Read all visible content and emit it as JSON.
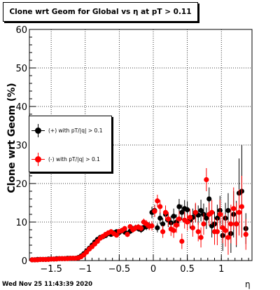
{
  "title": "Clone wrt Geom for Global vs   η at pT > 0.11",
  "footer": {
    "date": "Wed Nov 25 11:43:39 2020"
  },
  "chart_data": {
    "type": "scatter",
    "xlabel": "η",
    "ylabel": "Clone wrt Geom (%)",
    "xlim": [
      -1.82,
      1.45
    ],
    "ylim": [
      0,
      60
    ],
    "xticks": [
      -1.5,
      -1,
      -0.5,
      0,
      0.5,
      1
    ],
    "xtick_labels": [
      "−1.5",
      "−1",
      "−0.5",
      "0",
      "0.5",
      "1"
    ],
    "yticks": [
      0,
      10,
      20,
      30,
      40,
      50,
      60
    ],
    "grid": true,
    "legend_position": "left-middle",
    "series": [
      {
        "name": "(+) with pT/|q| > 0.1",
        "color": "#000000",
        "points": [
          [
            -1.78,
            0.2,
            0.2
          ],
          [
            -1.74,
            0.2,
            0.2
          ],
          [
            -1.7,
            0.3,
            0.2
          ],
          [
            -1.66,
            0.3,
            0.2
          ],
          [
            -1.62,
            0.3,
            0.2
          ],
          [
            -1.58,
            0.3,
            0.2
          ],
          [
            -1.54,
            0.4,
            0.2
          ],
          [
            -1.5,
            0.4,
            0.2
          ],
          [
            -1.46,
            0.4,
            0.2
          ],
          [
            -1.42,
            0.5,
            0.2
          ],
          [
            -1.38,
            0.5,
            0.2
          ],
          [
            -1.34,
            0.5,
            0.2
          ],
          [
            -1.3,
            0.5,
            0.2
          ],
          [
            -1.26,
            0.6,
            0.2
          ],
          [
            -1.22,
            0.6,
            0.2
          ],
          [
            -1.18,
            0.6,
            0.2
          ],
          [
            -1.14,
            0.6,
            0.2
          ],
          [
            -1.1,
            0.8,
            0.2
          ],
          [
            -1.06,
            1.2,
            0.3
          ],
          [
            -1.02,
            1.8,
            0.3
          ],
          [
            -0.98,
            2.5,
            0.4
          ],
          [
            -0.94,
            3.2,
            0.4
          ],
          [
            -0.9,
            4.0,
            0.4
          ],
          [
            -0.86,
            4.8,
            0.5
          ],
          [
            -0.82,
            5.5,
            0.5
          ],
          [
            -0.78,
            6.0,
            0.5
          ],
          [
            -0.74,
            6.2,
            0.5
          ],
          [
            -0.7,
            6.5,
            0.6
          ],
          [
            -0.66,
            7.0,
            0.6
          ],
          [
            -0.62,
            6.8,
            0.6
          ],
          [
            -0.58,
            7.2,
            0.6
          ],
          [
            -0.54,
            7.5,
            0.6
          ],
          [
            -0.5,
            7.3,
            0.6
          ],
          [
            -0.46,
            7.8,
            0.7
          ],
          [
            -0.42,
            7.4,
            0.7
          ],
          [
            -0.38,
            7.0,
            0.7
          ],
          [
            -0.34,
            7.6,
            0.7
          ],
          [
            -0.3,
            8.2,
            0.8
          ],
          [
            -0.26,
            8.5,
            0.8
          ],
          [
            -0.22,
            8.3,
            0.8
          ],
          [
            -0.18,
            8.0,
            0.8
          ],
          [
            -0.14,
            8.6,
            0.9
          ],
          [
            -0.1,
            8.8,
            0.9
          ],
          [
            -0.06,
            9.0,
            1.0
          ],
          [
            -0.02,
            12.5,
            1.5
          ],
          [
            0.02,
            13.0,
            1.5
          ],
          [
            0.06,
            8.5,
            1.2
          ],
          [
            0.1,
            11.0,
            1.5
          ],
          [
            0.14,
            9.5,
            1.5
          ],
          [
            0.18,
            12.0,
            1.8
          ],
          [
            0.22,
            10.5,
            1.8
          ],
          [
            0.26,
            9.8,
            1.8
          ],
          [
            0.3,
            11.5,
            2.0
          ],
          [
            0.34,
            10.0,
            2.0
          ],
          [
            0.38,
            14.0,
            2.0
          ],
          [
            0.42,
            12.5,
            2.0
          ],
          [
            0.46,
            13.5,
            2.2
          ],
          [
            0.5,
            13.2,
            2.2
          ],
          [
            0.54,
            10.5,
            2.2
          ],
          [
            0.58,
            11.2,
            2.3
          ],
          [
            0.62,
            12.3,
            2.4
          ],
          [
            0.66,
            11.8,
            2.5
          ],
          [
            0.7,
            13.0,
            2.8
          ],
          [
            0.74,
            12.0,
            2.8
          ],
          [
            0.78,
            11.0,
            2.8
          ],
          [
            0.82,
            16.0,
            3.0
          ],
          [
            0.86,
            9.0,
            3.0
          ],
          [
            0.9,
            9.5,
            3.2
          ],
          [
            0.94,
            11.0,
            3.5
          ],
          [
            0.98,
            13.0,
            3.8
          ],
          [
            1.02,
            6.5,
            4.0
          ],
          [
            1.06,
            11.0,
            4.0
          ],
          [
            1.1,
            13.0,
            4.5
          ],
          [
            1.14,
            7.0,
            5.0
          ],
          [
            1.18,
            12.0,
            6.0
          ],
          [
            1.22,
            9.5,
            6.0
          ],
          [
            1.26,
            17.5,
            9.0
          ],
          [
            1.3,
            18.0,
            12.0
          ],
          [
            1.36,
            8.3,
            4.0
          ]
        ]
      },
      {
        "name": "(-) with pT/|q| > 0.1",
        "color": "#ff0000",
        "points": [
          [
            -1.78,
            0.2,
            0.2
          ],
          [
            -1.74,
            0.2,
            0.2
          ],
          [
            -1.7,
            0.2,
            0.2
          ],
          [
            -1.66,
            0.3,
            0.2
          ],
          [
            -1.62,
            0.3,
            0.2
          ],
          [
            -1.58,
            0.3,
            0.2
          ],
          [
            -1.54,
            0.3,
            0.2
          ],
          [
            -1.5,
            0.4,
            0.2
          ],
          [
            -1.46,
            0.4,
            0.2
          ],
          [
            -1.42,
            0.4,
            0.2
          ],
          [
            -1.38,
            0.5,
            0.2
          ],
          [
            -1.34,
            0.5,
            0.2
          ],
          [
            -1.3,
            0.5,
            0.2
          ],
          [
            -1.26,
            0.5,
            0.2
          ],
          [
            -1.22,
            0.6,
            0.2
          ],
          [
            -1.18,
            0.6,
            0.2
          ],
          [
            -1.14,
            0.6,
            0.2
          ],
          [
            -1.1,
            0.7,
            0.2
          ],
          [
            -1.06,
            1.0,
            0.3
          ],
          [
            -1.02,
            1.5,
            0.3
          ],
          [
            -0.98,
            2.2,
            0.4
          ],
          [
            -0.94,
            3.0,
            0.4
          ],
          [
            -0.9,
            3.6,
            0.4
          ],
          [
            -0.86,
            4.3,
            0.5
          ],
          [
            -0.82,
            5.0,
            0.5
          ],
          [
            -0.78,
            5.8,
            0.5
          ],
          [
            -0.74,
            6.3,
            0.5
          ],
          [
            -0.7,
            6.8,
            0.6
          ],
          [
            -0.66,
            7.2,
            0.6
          ],
          [
            -0.62,
            7.5,
            0.6
          ],
          [
            -0.58,
            7.0,
            0.6
          ],
          [
            -0.54,
            6.6,
            0.6
          ],
          [
            -0.5,
            7.6,
            0.6
          ],
          [
            -0.46,
            7.8,
            0.7
          ],
          [
            -0.42,
            8.3,
            0.7
          ],
          [
            -0.38,
            6.8,
            0.7
          ],
          [
            -0.34,
            8.8,
            0.7
          ],
          [
            -0.3,
            8.0,
            0.8
          ],
          [
            -0.26,
            8.5,
            0.8
          ],
          [
            -0.22,
            8.7,
            0.8
          ],
          [
            -0.18,
            8.4,
            0.8
          ],
          [
            -0.14,
            10.0,
            0.9
          ],
          [
            -0.1,
            9.5,
            1.0
          ],
          [
            -0.06,
            8.9,
            1.0
          ],
          [
            -0.02,
            9.0,
            1.2
          ],
          [
            0.02,
            12.8,
            1.5
          ],
          [
            0.06,
            15.5,
            1.6
          ],
          [
            0.1,
            14.0,
            1.7
          ],
          [
            0.14,
            7.5,
            1.6
          ],
          [
            0.18,
            12.5,
            1.8
          ],
          [
            0.22,
            10.8,
            1.8
          ],
          [
            0.26,
            8.2,
            1.8
          ],
          [
            0.3,
            7.8,
            1.9
          ],
          [
            0.34,
            9.2,
            2.0
          ],
          [
            0.38,
            10.8,
            2.0
          ],
          [
            0.42,
            5.0,
            2.0
          ],
          [
            0.46,
            10.5,
            2.2
          ],
          [
            0.5,
            10.0,
            2.2
          ],
          [
            0.54,
            11.2,
            2.2
          ],
          [
            0.58,
            8.5,
            2.3
          ],
          [
            0.62,
            12.5,
            2.5
          ],
          [
            0.66,
            7.5,
            2.5
          ],
          [
            0.7,
            6.0,
            2.6
          ],
          [
            0.74,
            9.5,
            2.8
          ],
          [
            0.78,
            21.0,
            3.0
          ],
          [
            0.82,
            12.0,
            3.0
          ],
          [
            0.86,
            12.5,
            3.2
          ],
          [
            0.9,
            7.5,
            3.4
          ],
          [
            0.94,
            7.5,
            3.5
          ],
          [
            0.98,
            12.0,
            3.8
          ],
          [
            1.02,
            8.5,
            4.0
          ],
          [
            1.06,
            7.8,
            4.2
          ],
          [
            1.1,
            6.0,
            4.5
          ],
          [
            1.14,
            9.5,
            5.0
          ],
          [
            1.18,
            13.5,
            5.5
          ],
          [
            1.22,
            9.5,
            5.5
          ],
          [
            1.26,
            12.5,
            6.0
          ],
          [
            1.3,
            14.0,
            8.0
          ],
          [
            1.36,
            6.8,
            4.0
          ]
        ]
      }
    ]
  }
}
